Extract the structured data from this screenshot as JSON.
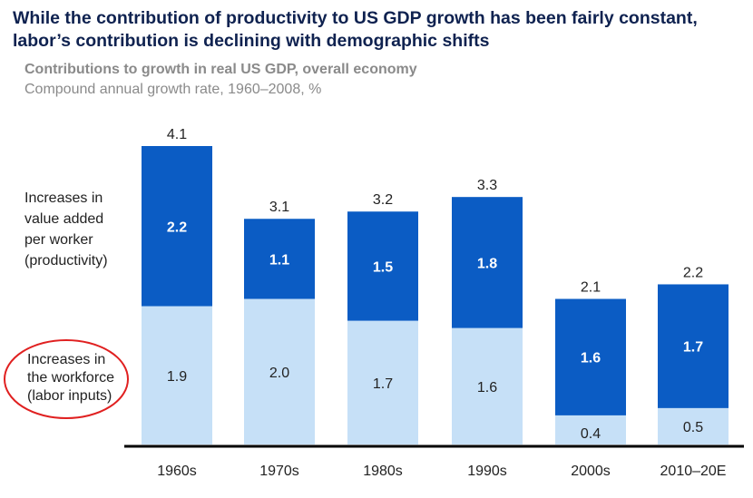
{
  "header": {
    "title": "While the contribution of productivity to US GDP growth has been fairly constant, labor’s contribution is declining with demographic shifts",
    "subtitle": "Contributions to growth in real US GDP, overall economy",
    "note": "Compound annual growth rate, 1960–2008, %"
  },
  "chart_data": {
    "type": "bar",
    "stacked": true,
    "title": "While the contribution of productivity to US GDP growth has been fairly constant, labor’s contribution is declining with demographic shifts",
    "subtitle": "Contributions to growth in real US GDP, overall economy",
    "unit_note": "Compound annual growth rate, 1960–2008, %",
    "xlabel": "",
    "ylabel": "",
    "ylim": [
      0,
      4.1
    ],
    "grid": false,
    "categories": [
      "1960s",
      "1970s",
      "1980s",
      "1990s",
      "2000s",
      "2010–20E"
    ],
    "series": [
      {
        "name": "Increases in the workforce (labor inputs)",
        "label_lines": [
          "Increases in",
          "the workforce",
          "(labor inputs)"
        ],
        "color": "#c6e0f7",
        "values": [
          1.9,
          2.0,
          1.7,
          1.6,
          0.4,
          0.5
        ],
        "labels": [
          "1.9",
          "2.0",
          "1.7",
          "1.6",
          "0.4",
          "0.5"
        ]
      },
      {
        "name": "Increases in value added per worker (productivity)",
        "label_lines": [
          "Increases in",
          "value added",
          "per worker",
          "(productivity)"
        ],
        "color": "#0b5cc4",
        "values": [
          2.2,
          1.1,
          1.5,
          1.8,
          1.6,
          1.7
        ],
        "labels": [
          "2.2",
          "1.1",
          "1.5",
          "1.8",
          "1.6",
          "1.7"
        ]
      }
    ],
    "totals": [
      4.1,
      3.1,
      3.2,
      3.3,
      2.1,
      2.2
    ],
    "total_labels": [
      "4.1",
      "3.1",
      "3.2",
      "3.3",
      "2.1",
      "2.2"
    ],
    "highlight": "Increases in the workforce (labor inputs)",
    "highlight_color": "#e02020"
  }
}
